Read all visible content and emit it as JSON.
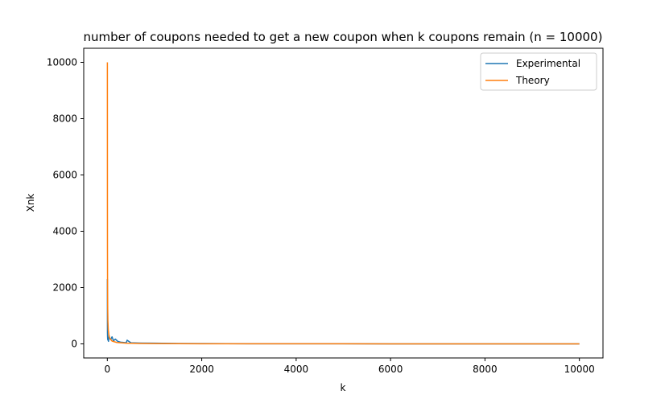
{
  "chart_data": {
    "type": "line",
    "title": "number of coupons needed to get a new coupon when k coupons remain (n = 10000)",
    "xlabel": "k",
    "ylabel": "Xnk",
    "xlim": [
      -500,
      10500
    ],
    "ylim": [
      -500,
      10500
    ],
    "xticks": [
      0,
      2000,
      4000,
      6000,
      8000,
      10000
    ],
    "yticks": [
      0,
      2000,
      4000,
      6000,
      8000,
      10000
    ],
    "grid": false,
    "legend_position": "upper right",
    "series": [
      {
        "name": "Experimental",
        "color": "#1f77b4",
        "x": [
          1,
          2,
          3,
          5,
          8,
          12,
          18,
          25,
          35,
          50,
          70,
          100,
          130,
          170,
          220,
          280,
          350,
          400,
          420,
          500,
          700,
          1000,
          1500,
          2000,
          3000,
          4000,
          5000,
          6000,
          7000,
          8000,
          9000,
          10000
        ],
        "y": [
          2300,
          700,
          400,
          250,
          150,
          180,
          120,
          90,
          300,
          200,
          150,
          250,
          110,
          170,
          90,
          60,
          50,
          40,
          130,
          40,
          30,
          25,
          15,
          10,
          5,
          3,
          2,
          1.5,
          1.3,
          1.2,
          1.1,
          1
        ]
      },
      {
        "name": "Theory",
        "color": "#ff7f0e",
        "x": [
          1,
          2,
          3,
          5,
          8,
          12,
          20,
          35,
          50,
          100,
          200,
          400,
          700,
          1000,
          2000,
          3000,
          4000,
          5000,
          6000,
          7000,
          8000,
          9000,
          10000
        ],
        "y": [
          10000,
          5000,
          3333,
          2000,
          1250,
          833,
          500,
          286,
          200,
          100,
          50,
          25,
          14.3,
          10,
          5,
          3.3,
          2.5,
          2,
          1.7,
          1.4,
          1.25,
          1.1,
          1
        ]
      }
    ]
  }
}
